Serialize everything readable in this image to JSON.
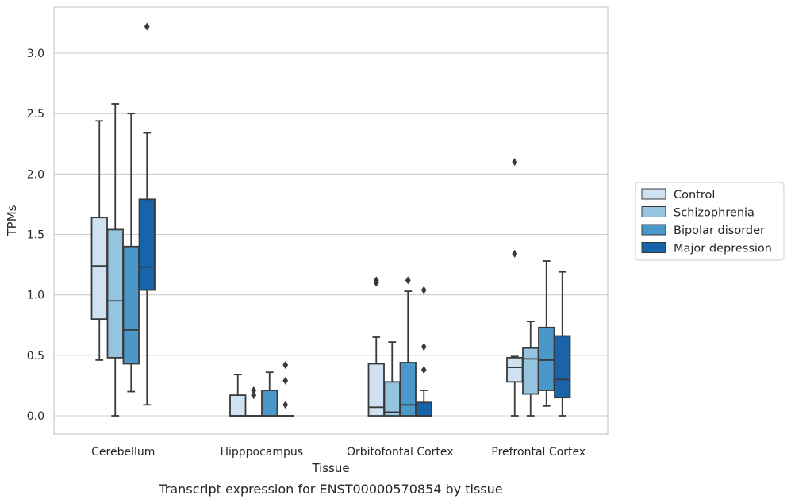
{
  "chart_data": {
    "type": "box",
    "xlabel": "Tissue",
    "ylabel": "TPMs",
    "caption": "Transcript expression for ENST00000570854 by tissue",
    "ylim": [
      -0.155,
      3.4
    ],
    "yticks": [
      0.0,
      0.5,
      1.0,
      1.5,
      2.0,
      2.5,
      3.0
    ],
    "ytick_labels": [
      "0.0",
      "0.5",
      "1.0",
      "1.5",
      "2.0",
      "2.5",
      "3.0"
    ],
    "grid": "horizontal",
    "legend_position": "right",
    "categories": [
      "Cerebellum",
      "Hipppocampus",
      "Orbitofontal Cortex",
      "Prefrontal Cortex"
    ],
    "series": [
      {
        "name": "Control",
        "color": "#d0e1f2",
        "boxes": [
          {
            "whisker_low": 0.46,
            "q1": 0.8,
            "median": 1.24,
            "q3": 1.64,
            "whisker_high": 2.44,
            "outliers": []
          },
          {
            "whisker_low": 0.0,
            "q1": 0.0,
            "median": 0.0,
            "q3": 0.17,
            "whisker_high": 0.34,
            "outliers": []
          },
          {
            "whisker_low": 0.0,
            "q1": 0.0,
            "median": 0.07,
            "q3": 0.43,
            "whisker_high": 0.65,
            "outliers": [
              1.1,
              1.12
            ]
          },
          {
            "whisker_low": 0.0,
            "q1": 0.28,
            "median": 0.4,
            "q3": 0.48,
            "whisker_high": 0.49,
            "outliers": [
              1.34,
              2.1
            ]
          }
        ]
      },
      {
        "name": "Schizophrenia",
        "color": "#94c4df",
        "boxes": [
          {
            "whisker_low": 0.0,
            "q1": 0.48,
            "median": 0.95,
            "q3": 1.54,
            "whisker_high": 2.58,
            "outliers": []
          },
          {
            "whisker_low": 0.0,
            "q1": 0.0,
            "median": 0.0,
            "q3": 0.0,
            "whisker_high": 0.0,
            "outliers": [
              0.17,
              0.21
            ]
          },
          {
            "whisker_low": 0.0,
            "q1": 0.0,
            "median": 0.03,
            "q3": 0.28,
            "whisker_high": 0.61,
            "outliers": []
          },
          {
            "whisker_low": 0.0,
            "q1": 0.18,
            "median": 0.47,
            "q3": 0.56,
            "whisker_high": 0.78,
            "outliers": []
          }
        ]
      },
      {
        "name": "Bipolar disorder",
        "color": "#4a98c9",
        "boxes": [
          {
            "whisker_low": 0.2,
            "q1": 0.43,
            "median": 0.71,
            "q3": 1.4,
            "whisker_high": 2.5,
            "outliers": []
          },
          {
            "whisker_low": 0.0,
            "q1": 0.0,
            "median": 0.0,
            "q3": 0.21,
            "whisker_high": 0.36,
            "outliers": []
          },
          {
            "whisker_low": 0.0,
            "q1": 0.0,
            "median": 0.09,
            "q3": 0.44,
            "whisker_high": 1.03,
            "outliers": [
              1.12
            ]
          },
          {
            "whisker_low": 0.08,
            "q1": 0.21,
            "median": 0.46,
            "q3": 0.73,
            "whisker_high": 1.28,
            "outliers": []
          }
        ]
      },
      {
        "name": "Major depression",
        "color": "#1764ab",
        "boxes": [
          {
            "whisker_low": 0.09,
            "q1": 1.04,
            "median": 1.23,
            "q3": 1.79,
            "whisker_high": 2.34,
            "outliers": [
              3.22
            ]
          },
          {
            "whisker_low": 0.0,
            "q1": 0.0,
            "median": 0.0,
            "q3": 0.0,
            "whisker_high": 0.0,
            "outliers": [
              0.09,
              0.29,
              0.42
            ]
          },
          {
            "whisker_low": 0.0,
            "q1": 0.0,
            "median": 0.0,
            "q3": 0.11,
            "whisker_high": 0.21,
            "outliers": [
              0.38,
              0.57,
              1.04
            ]
          },
          {
            "whisker_low": 0.0,
            "q1": 0.15,
            "median": 0.3,
            "q3": 0.66,
            "whisker_high": 1.19,
            "outliers": []
          }
        ]
      }
    ]
  }
}
